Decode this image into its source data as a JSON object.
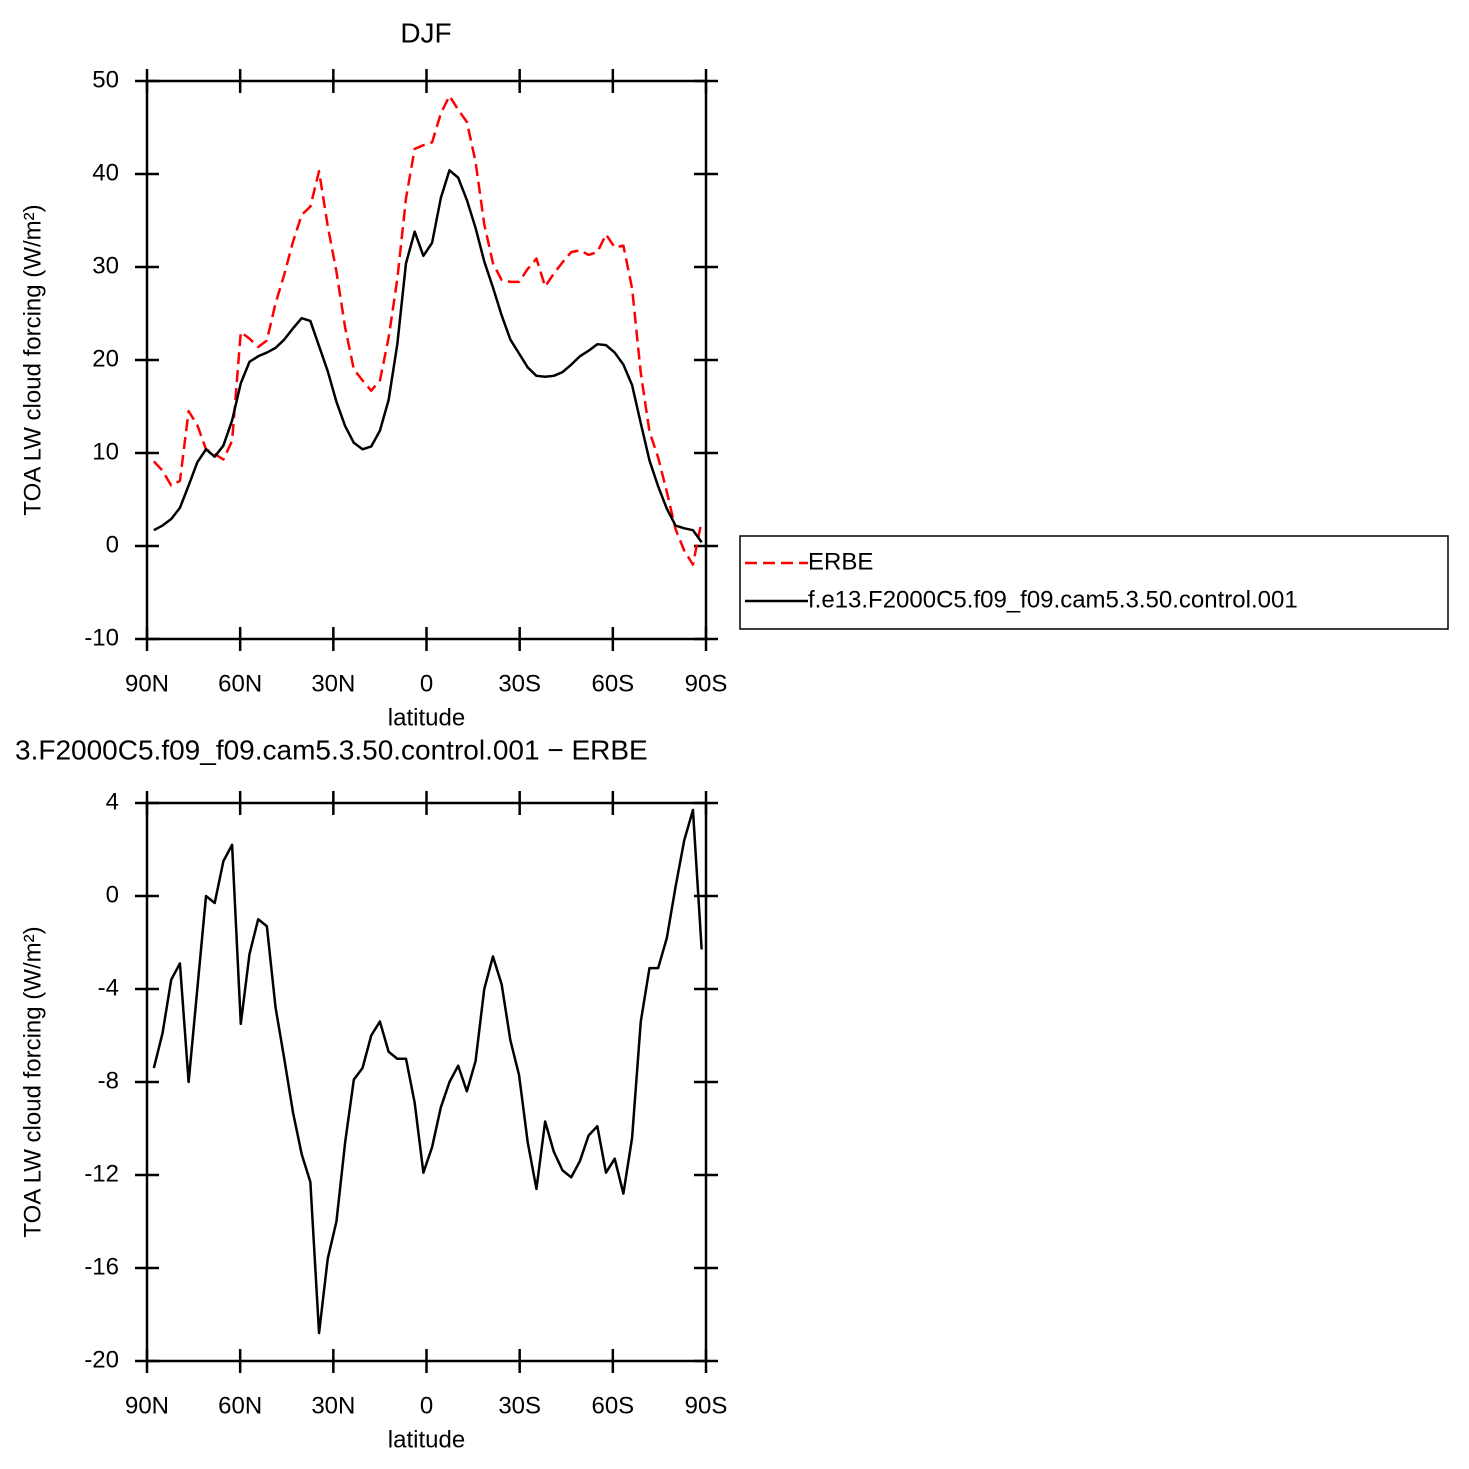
{
  "chart_data": [
    {
      "type": "line",
      "title": "DJF",
      "xlabel": "latitude",
      "ylabel": "TOA LW cloud forcing (W/m²)",
      "xlim": [
        90,
        -90
      ],
      "xticks": [
        {
          "value": 90,
          "label": "90N"
        },
        {
          "value": 60,
          "label": "60N"
        },
        {
          "value": 30,
          "label": "30N"
        },
        0,
        {
          "value": -30,
          "label": "30S"
        },
        {
          "value": -60,
          "label": "60S"
        },
        {
          "value": -90,
          "label": "90S"
        }
      ],
      "ylim": [
        -10,
        50
      ],
      "yticks": [
        -10,
        0,
        10,
        20,
        30,
        40,
        50
      ],
      "legend": "right",
      "x": [
        87.8,
        85.0,
        82.2,
        79.4,
        76.6,
        73.8,
        71.0,
        68.2,
        65.4,
        62.6,
        59.8,
        57.0,
        54.2,
        51.4,
        48.6,
        45.8,
        43.0,
        40.2,
        37.4,
        34.6,
        31.8,
        29.0,
        26.2,
        23.4,
        20.6,
        17.8,
        15.0,
        12.2,
        9.4,
        6.6,
        3.8,
        1.0,
        -1.8,
        -4.6,
        -7.4,
        -10.2,
        -13.0,
        -15.8,
        -18.6,
        -21.4,
        -24.2,
        -27.0,
        -29.8,
        -32.6,
        -35.4,
        -38.2,
        -41.0,
        -43.8,
        -46.6,
        -49.4,
        -52.2,
        -55.0,
        -57.8,
        -60.6,
        -63.4,
        -66.2,
        -69.0,
        -71.8,
        -74.6,
        -77.4,
        -80.2,
        -83.0,
        -85.8,
        -88.6
      ],
      "series": [
        {
          "name": "ERBE",
          "color": "#ff0000",
          "dash": true,
          "values": [
            9.1,
            8.1,
            6.5,
            7.0,
            14.5,
            13.0,
            10.4,
            9.9,
            9.3,
            11.3,
            23.0,
            22.3,
            21.4,
            22.1,
            26.1,
            29.2,
            32.7,
            35.6,
            36.5,
            40.3,
            34.4,
            29.5,
            23.5,
            19.0,
            17.8,
            16.7,
            17.8,
            22.4,
            28.7,
            37.4,
            42.7,
            43.1,
            43.4,
            46.5,
            48.4,
            46.9,
            45.6,
            41.3,
            34.6,
            30.4,
            28.6,
            28.4,
            28.4,
            29.8,
            30.9,
            27.9,
            29.3,
            30.5,
            31.6,
            31.8,
            31.3,
            31.6,
            33.5,
            32.1,
            32.3,
            27.7,
            18.6,
            12.3,
            9.5,
            5.8,
            1.8,
            -0.5,
            -2.0,
            2.7
          ]
        },
        {
          "name": "f.e13.F2000C5.f09_f09.cam5.3.50.control.001",
          "color": "#000000",
          "dash": false,
          "values": [
            1.7,
            2.2,
            2.9,
            4.1,
            6.5,
            9.0,
            10.4,
            9.6,
            10.8,
            13.5,
            17.5,
            19.8,
            20.4,
            20.8,
            21.3,
            22.2,
            23.4,
            24.5,
            24.2,
            21.5,
            18.8,
            15.5,
            12.9,
            11.1,
            10.4,
            10.7,
            12.4,
            15.7,
            21.7,
            30.4,
            33.8,
            31.2,
            32.6,
            37.4,
            40.4,
            39.6,
            37.2,
            34.2,
            30.6,
            27.8,
            24.8,
            22.2,
            20.7,
            19.2,
            18.3,
            18.2,
            18.3,
            18.7,
            19.5,
            20.4,
            21.0,
            21.7,
            21.6,
            20.8,
            19.5,
            17.3,
            13.2,
            9.2,
            6.4,
            4.0,
            2.2,
            1.9,
            1.7,
            0.4
          ]
        }
      ]
    },
    {
      "type": "line",
      "title": "3.F2000C5.f09_f09.cam5.3.50.control.001 − ERBE",
      "xlabel": "latitude",
      "ylabel": "TOA LW cloud forcing (W/m²)",
      "xlim": [
        90,
        -90
      ],
      "xticks": [
        {
          "value": 90,
          "label": "90N"
        },
        {
          "value": 60,
          "label": "60N"
        },
        {
          "value": 30,
          "label": "30N"
        },
        0,
        {
          "value": -30,
          "label": "30S"
        },
        {
          "value": -60,
          "label": "60S"
        },
        {
          "value": -90,
          "label": "90S"
        }
      ],
      "ylim": [
        -20,
        4
      ],
      "yticks": [
        -20,
        -16,
        -12,
        -8,
        -4,
        0,
        4
      ],
      "x": [
        87.8,
        85.0,
        82.2,
        79.4,
        76.6,
        73.8,
        71.0,
        68.2,
        65.4,
        62.6,
        59.8,
        57.0,
        54.2,
        51.4,
        48.6,
        45.8,
        43.0,
        40.2,
        37.4,
        34.6,
        31.8,
        29.0,
        26.2,
        23.4,
        20.6,
        17.8,
        15.0,
        12.2,
        9.4,
        6.6,
        3.8,
        1.0,
        -1.8,
        -4.6,
        -7.4,
        -10.2,
        -13.0,
        -15.8,
        -18.6,
        -21.4,
        -24.2,
        -27.0,
        -29.8,
        -32.6,
        -35.4,
        -38.2,
        -41.0,
        -43.8,
        -46.6,
        -49.4,
        -52.2,
        -55.0,
        -57.8,
        -60.6,
        -63.4,
        -66.2,
        -69.0,
        -71.8,
        -74.6,
        -77.4,
        -80.2,
        -83.0,
        -85.8,
        -88.6
      ],
      "series": [
        {
          "color": "#000000",
          "dash": false,
          "values": [
            -7.4,
            -5.9,
            -3.6,
            -2.9,
            -8.0,
            -4.0,
            0.0,
            -0.3,
            1.5,
            2.2,
            -5.5,
            -2.5,
            -1.0,
            -1.3,
            -4.8,
            -7.0,
            -9.3,
            -11.1,
            -12.3,
            -18.8,
            -15.6,
            -14.0,
            -10.6,
            -7.9,
            -7.4,
            -6.0,
            -5.4,
            -6.7,
            -7.0,
            -7.0,
            -8.9,
            -11.9,
            -10.8,
            -9.1,
            -8.0,
            -7.3,
            -8.4,
            -7.1,
            -4.0,
            -2.6,
            -3.8,
            -6.2,
            -7.7,
            -10.6,
            -12.6,
            -9.7,
            -11.0,
            -11.8,
            -12.1,
            -11.4,
            -10.3,
            -9.9,
            -11.9,
            -11.3,
            -12.8,
            -10.4,
            -5.4,
            -3.1,
            -3.1,
            -1.8,
            0.4,
            2.4,
            3.7,
            -2.3
          ]
        }
      ]
    }
  ]
}
